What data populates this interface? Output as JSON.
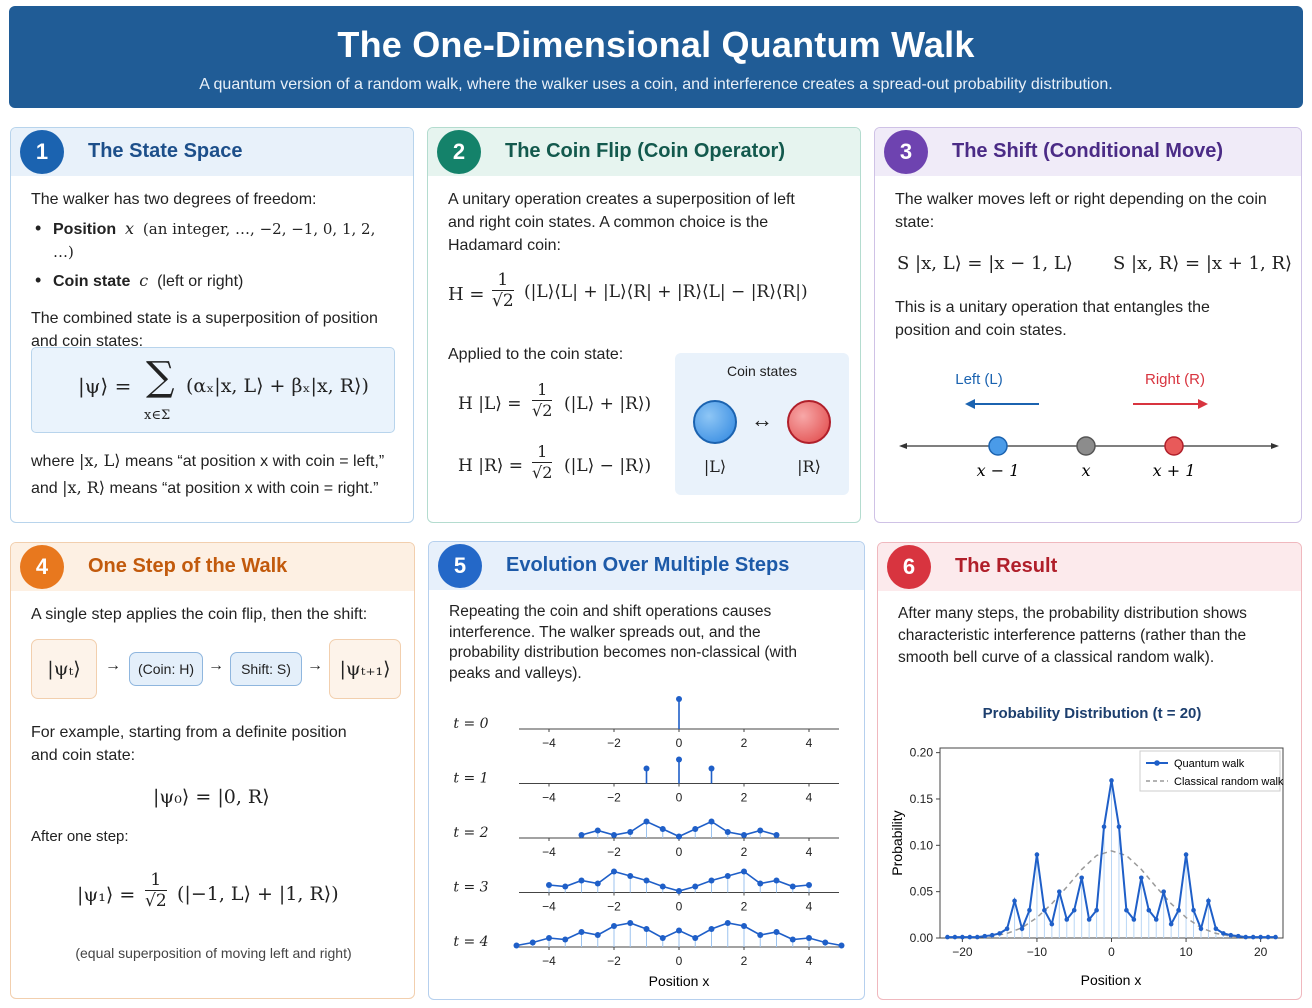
{
  "header": {
    "title": "The One-Dimensional Quantum Walk",
    "subtitle": "A quantum version of a random walk, where the walker uses a coin, and interference creates a spread-out probability distribution."
  },
  "colors": {
    "blue": "#1b63b0",
    "green": "#14826a",
    "purple": "#6e43b0",
    "orange": "#e8781e",
    "red": "#d8343f",
    "header": "#205c96"
  },
  "card1": {
    "number": "1",
    "title": "The State Space",
    "intro": "The walker has two degrees of freedom:",
    "bullet1_label": "Position",
    "bullet1_sym": "x",
    "bullet1_desc": "(an integer, …, −2, −1, 0, 1, 2, …)",
    "bullet2_label": "Coin state",
    "bullet2_sym": "c",
    "bullet2_desc": "(left or right)",
    "combined": "The combined state is a superposition of position and coin states:",
    "eq_lhs": "|ψ⟩ =",
    "eq_sum": "∑",
    "eq_sub": "x∈Σ",
    "eq_rhs": "(αₓ|x, L⟩ + βₓ|x, R⟩)",
    "where1_pre": "where",
    "where1_ket": "|x, L⟩",
    "where1_post": "means “at position x with coin = left,”",
    "where2_pre": "and",
    "where2_ket": "|x, R⟩",
    "where2_post": "means “at position x with coin = right.”"
  },
  "card2": {
    "number": "2",
    "title": "The Coin Flip (Coin Operator)",
    "intro": "A unitary operation creates a superposition of left and right coin states. A common choice is the Hadamard coin:",
    "h_lhs": "H =",
    "frac_num": "1",
    "frac_den": "√2",
    "h_rhs": "(|L⟩⟨L| + |L⟩⟨R| + |R⟩⟨L| − |R⟩⟨R|)",
    "applied": "Applied to the coin state:",
    "eq1_lhs": "H |L⟩ =",
    "eq1_rhs": "(|L⟩ + |R⟩)",
    "eq2_lhs": "H |R⟩ =",
    "eq2_rhs": "(|L⟩ − |R⟩)",
    "coin_title": "Coin states",
    "coin_left": "|L⟩",
    "coin_right": "|R⟩",
    "coin_arrow": "↔"
  },
  "card3": {
    "number": "3",
    "title": "The Shift (Conditional Move)",
    "intro": "The walker moves left or right depending on the coin state:",
    "eq_left": "S |x, L⟩ = |x − 1, L⟩",
    "eq_right": "S |x, R⟩ = |x + 1, R⟩",
    "note": "This is a unitary operation that entangles the position and coin states.",
    "left_label": "Left (L)",
    "right_label": "Right (R)",
    "tick_minus": "x − 1",
    "tick_center": "x",
    "tick_plus": "x + 1"
  },
  "card4": {
    "number": "4",
    "title": "One Step of the Walk",
    "intro": "A single step applies the coin flip, then the shift:",
    "state_t": "|ψₜ⟩",
    "coin_box": "(Coin: H)",
    "shift_box": "Shift: S)",
    "state_t1": "|ψₜ₊₁⟩",
    "arrow": "→",
    "example": "For example, starting from a definite position and coin state:",
    "psi0": "|ψ₀⟩ = |0, R⟩",
    "after": "After one step:",
    "psi1_lhs": "|ψ₁⟩ =",
    "frac_num": "1",
    "frac_den": "√2",
    "psi1_rhs": "(|−1, L⟩ + |1, R⟩)",
    "footnote": "(equal superposition of moving left and right)"
  },
  "card5": {
    "number": "5",
    "title": "Evolution Over Multiple Steps",
    "intro": "Repeating the coin and shift operations causes interference. The walker spreads out, and the probability distribution becomes non-classical (with peaks and valleys).",
    "xlabel": "Position x"
  },
  "card6": {
    "number": "6",
    "title": "The Result",
    "intro": "After many steps, the probability distribution shows characteristic interference patterns (rather than the smooth bell curve of a classical random walk).",
    "chart_title": "Probability Distribution (t = 20)"
  },
  "chart_data": [
    {
      "type": "line",
      "title": "",
      "xlabel": "Position x",
      "xlim": [
        -5,
        5
      ],
      "xticks": [
        -4,
        -2,
        0,
        2,
        4
      ],
      "series": [
        {
          "name": "t = 0",
          "x": [
            0
          ],
          "y": [
            1.0
          ]
        },
        {
          "name": "t = 1",
          "x": [
            -1,
            0,
            1
          ],
          "y": [
            0.5,
            0.8,
            0.5
          ]
        },
        {
          "name": "t = 2",
          "x": [
            -3,
            -2.5,
            -2,
            -1.5,
            -1,
            -0.5,
            0,
            0.5,
            1,
            1.5,
            2,
            2.5,
            3
          ],
          "y": [
            0.1,
            0.25,
            0.1,
            0.2,
            0.55,
            0.3,
            0.05,
            0.3,
            0.55,
            0.2,
            0.1,
            0.25,
            0.1
          ]
        },
        {
          "name": "t = 3",
          "x": [
            -4,
            -3.5,
            -3,
            -2.5,
            -2,
            -1.5,
            -1,
            -0.5,
            0,
            0.5,
            1,
            1.5,
            2,
            2.5,
            3,
            3.5,
            4
          ],
          "y": [
            0.25,
            0.2,
            0.4,
            0.3,
            0.7,
            0.55,
            0.4,
            0.2,
            0.05,
            0.2,
            0.4,
            0.55,
            0.7,
            0.3,
            0.4,
            0.2,
            0.25
          ]
        },
        {
          "name": "t = 4",
          "x": [
            -5,
            -4.5,
            -4,
            -3.5,
            -3,
            -2.5,
            -2,
            -1.5,
            -1,
            -0.5,
            0,
            0.5,
            1,
            1.5,
            2,
            2.5,
            3,
            3.5,
            4,
            4.5,
            5
          ],
          "y": [
            0.05,
            0.15,
            0.3,
            0.25,
            0.5,
            0.4,
            0.7,
            0.8,
            0.6,
            0.3,
            0.55,
            0.3,
            0.6,
            0.8,
            0.7,
            0.4,
            0.5,
            0.25,
            0.3,
            0.15,
            0.05
          ]
        }
      ]
    },
    {
      "type": "line",
      "title": "Probability Distribution (t = 20)",
      "xlabel": "Position x",
      "ylabel": "Probability",
      "xlim": [
        -23,
        23
      ],
      "ylim": [
        0,
        0.205
      ],
      "xticks": [
        -20,
        -10,
        0,
        10,
        20
      ],
      "yticks": [
        0.0,
        0.05,
        0.1,
        0.15,
        0.2
      ],
      "ytick_labels": [
        "0.00",
        "0.05",
        "0.10",
        "0.15",
        "0.20"
      ],
      "legend_position": "top-right",
      "grid": false,
      "series": [
        {
          "name": "Quantum walk",
          "color": "#1f5fc8",
          "x": [
            -22,
            -21,
            -20,
            -19,
            -18,
            -17,
            -16,
            -15,
            -14,
            -13,
            -12,
            -11,
            -10,
            -9,
            -8,
            -7,
            -6,
            -5,
            -4,
            -3,
            -2,
            -1,
            0,
            1,
            2,
            3,
            4,
            5,
            6,
            7,
            8,
            9,
            10,
            11,
            12,
            13,
            14,
            15,
            16,
            17,
            18,
            19,
            20,
            21,
            22
          ],
          "y": [
            0.001,
            0.001,
            0.001,
            0.001,
            0.001,
            0.002,
            0.003,
            0.005,
            0.01,
            0.04,
            0.01,
            0.03,
            0.09,
            0.03,
            0.015,
            0.05,
            0.02,
            0.03,
            0.065,
            0.02,
            0.03,
            0.12,
            0.17,
            0.12,
            0.03,
            0.02,
            0.065,
            0.03,
            0.02,
            0.05,
            0.015,
            0.03,
            0.09,
            0.03,
            0.01,
            0.04,
            0.01,
            0.005,
            0.003,
            0.002,
            0.001,
            0.001,
            0.001,
            0.001,
            0.001
          ]
        },
        {
          "name": "Classical random walk",
          "color": "#9a9a9a",
          "x": [
            -20,
            -18,
            -16,
            -14,
            -12,
            -10,
            -8,
            -6,
            -4,
            -2,
            0,
            2,
            4,
            6,
            8,
            10,
            12,
            14,
            16,
            18,
            20
          ],
          "y": [
            0.0,
            0.001,
            0.002,
            0.005,
            0.011,
            0.022,
            0.037,
            0.055,
            0.074,
            0.089,
            0.094,
            0.089,
            0.074,
            0.055,
            0.037,
            0.022,
            0.011,
            0.005,
            0.002,
            0.001,
            0.0
          ]
        }
      ]
    }
  ]
}
